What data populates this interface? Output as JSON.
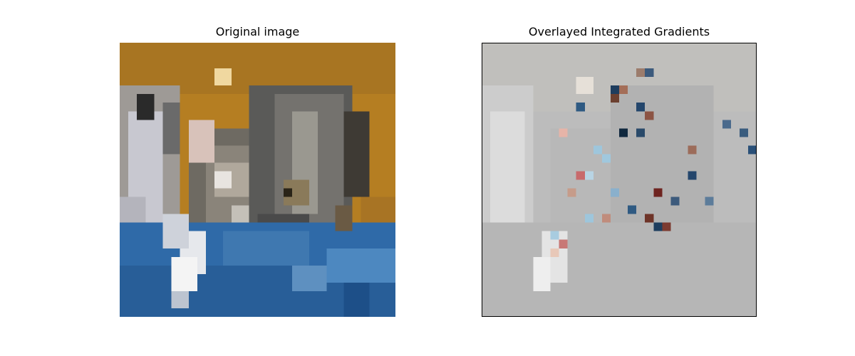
{
  "panels": {
    "left": {
      "title": "Original image"
    },
    "right": {
      "title": "Overlayed Integrated Gradients"
    }
  },
  "colors": {
    "background": "#ffffff",
    "title_text": "#000000",
    "frame": "#000000"
  }
}
